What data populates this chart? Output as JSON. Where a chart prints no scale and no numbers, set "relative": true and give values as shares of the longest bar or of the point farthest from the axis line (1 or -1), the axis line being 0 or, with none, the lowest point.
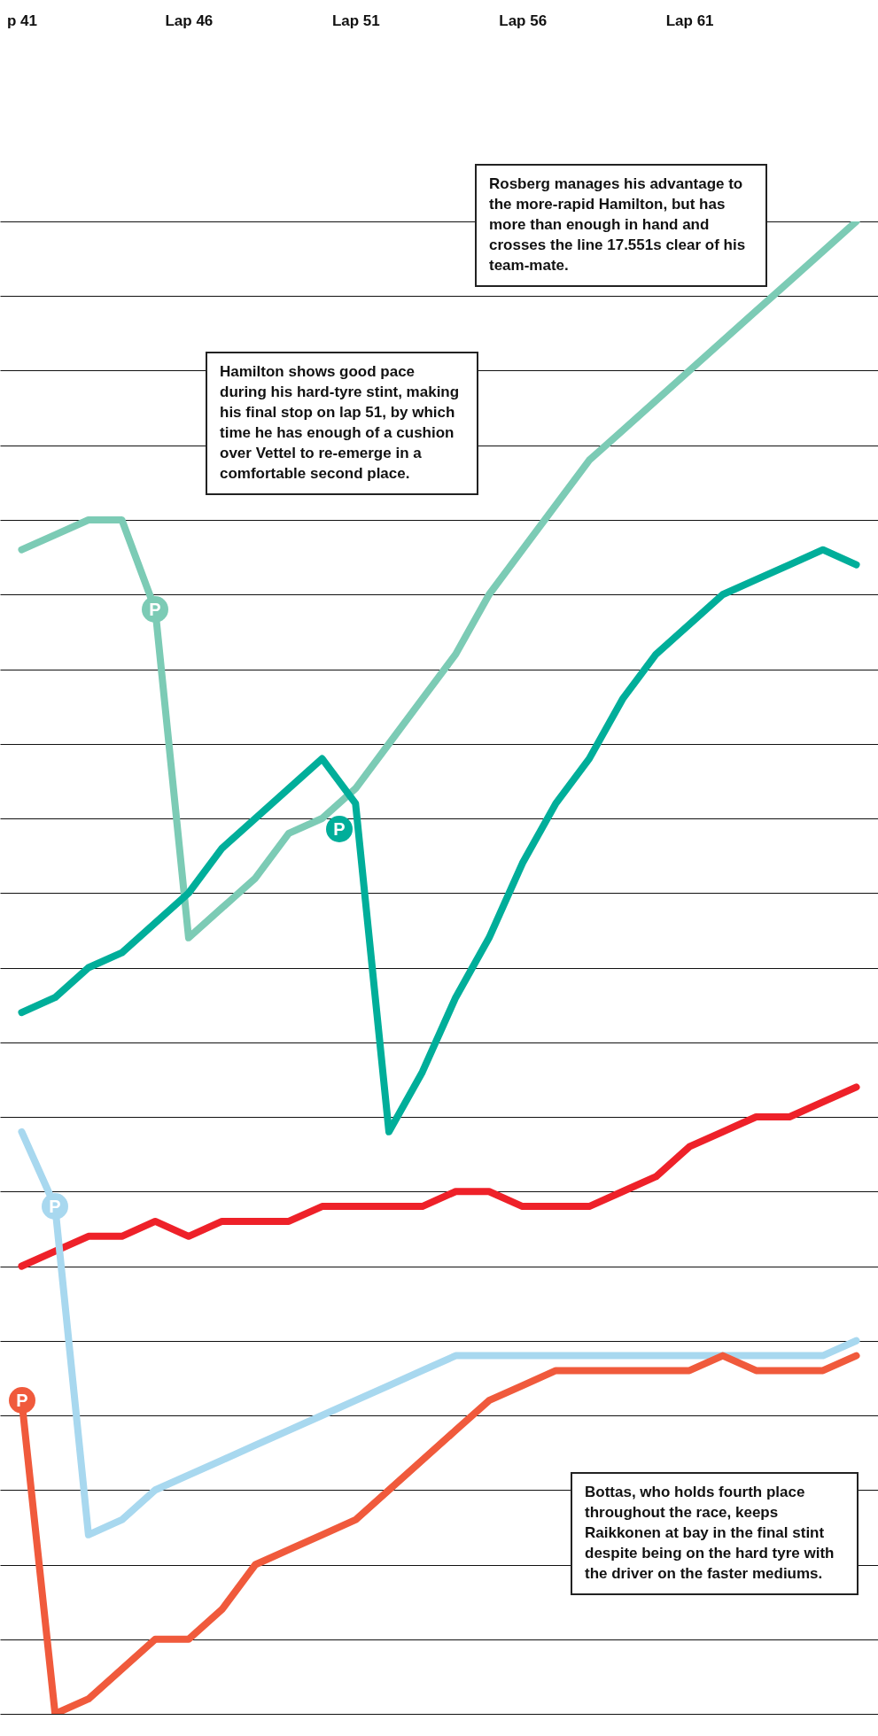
{
  "chart_data": {
    "type": "line",
    "relative": true,
    "grid": "y",
    "marker": "none",
    "categories": [
      "p 41",
      null,
      null,
      null,
      null,
      "Lap 46",
      null,
      null,
      null,
      null,
      "Lap 51",
      null,
      null,
      null,
      null,
      "Lap 56",
      null,
      null,
      null,
      null,
      "Lap 61",
      null,
      null,
      null,
      null,
      null
    ],
    "series": [
      {
        "color": "#7ccbb5",
        "values": [
          0.78,
          0.79,
          0.8,
          0.8,
          0.74,
          0.52,
          0.54,
          0.56,
          0.59,
          0.6,
          0.62,
          0.65,
          0.68,
          0.71,
          0.75,
          0.78,
          0.81,
          0.84,
          0.86,
          0.88,
          0.9,
          0.92,
          0.94,
          0.96,
          0.98,
          1
        ]
      },
      {
        "color": "#00ae9a",
        "values": [
          0.47,
          0.48,
          0.5,
          0.51,
          0.53,
          0.55,
          0.58,
          0.6,
          0.62,
          0.64,
          0.61,
          0.39,
          0.43,
          0.48,
          0.52,
          0.57,
          0.61,
          0.64,
          0.68,
          0.71,
          0.73,
          0.75,
          0.76,
          0.77,
          0.78,
          0.77
        ]
      },
      {
        "color": "#ee2129",
        "values": [
          0.3,
          0.31,
          0.32,
          0.32,
          0.33,
          0.32,
          0.33,
          0.33,
          0.33,
          0.34,
          0.34,
          0.34,
          0.34,
          0.35,
          0.35,
          0.34,
          0.34,
          0.34,
          0.35,
          0.36,
          0.38,
          0.39,
          0.4,
          0.4,
          0.41,
          0.42
        ]
      },
      {
        "color": "#a8d8ef",
        "values": [
          0.39,
          0.34,
          0.12,
          0.13,
          0.15,
          0.16,
          0.17,
          0.18,
          0.19,
          0.2,
          0.21,
          0.22,
          0.23,
          0.24,
          0.24,
          0.24,
          0.24,
          0.24,
          0.24,
          0.24,
          0.24,
          0.24,
          0.24,
          0.24,
          0.24,
          0.25
        ]
      },
      {
        "color": "#f05a3c",
        "values": [
          0.21,
          0,
          0.01,
          0.03,
          0.05,
          0.05,
          0.07,
          0.1,
          0.11,
          0.12,
          0.13,
          0.15,
          0.17,
          0.19,
          0.21,
          0.22,
          0.23,
          0.23,
          0.23,
          0.23,
          0.23,
          0.24,
          0.23,
          0.23,
          0.23,
          0.24
        ]
      }
    ],
    "annotations": [
      "Rosberg manages his advantage to the more-rapid Hamilton, but has more than enough in hand and crosses the line 17.551s clear of his team-mate.",
      "Hamilton shows good pace during his hard-tyre stint, making his final stop on lap 51, by which time he has enough of a cushion over Vettel to re-emerge in a comfortable second place.",
      "Bottas, who holds fourth place throughout the race, keeps Raikkonen at bay in the final stint despite being on the hard tyre with the driver on the faster mediums.",
      "P",
      "P",
      "P",
      "P"
    ]
  }
}
